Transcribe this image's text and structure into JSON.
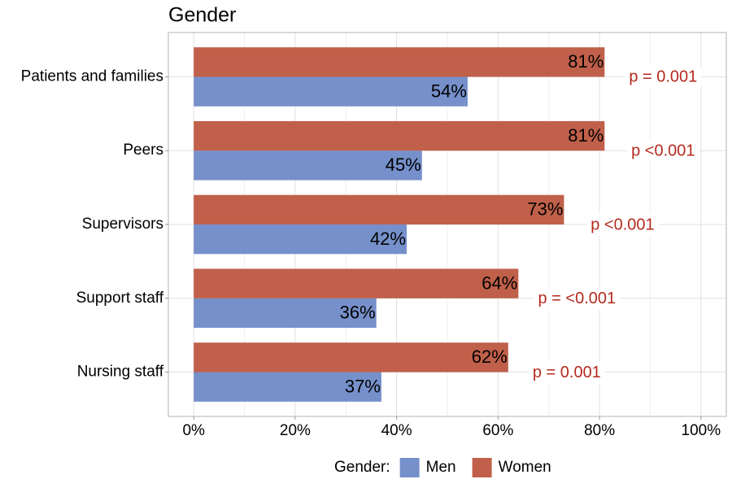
{
  "chart_data": {
    "type": "barh",
    "title": "Gender",
    "categories": [
      "Patients and families",
      "Peers",
      "Supervisors",
      "Support staff",
      "Nursing staff"
    ],
    "series": [
      {
        "name": "Men",
        "color": "#7690cb",
        "values": [
          54,
          45,
          42,
          36,
          37
        ],
        "value_labels": [
          "54%",
          "45%",
          "42%",
          "36%",
          "37%"
        ]
      },
      {
        "name": "Women",
        "color": "#c0604a",
        "values": [
          81,
          81,
          73,
          64,
          62
        ],
        "value_labels": [
          "81%",
          "81%",
          "73%",
          "64%",
          "62%"
        ]
      }
    ],
    "annotations": [
      "p = 0.001",
      "p <0.001",
      "p <0.001",
      "p = <0.001",
      "p = 0.001"
    ],
    "legend_title": "Gender:",
    "legend": "bottom",
    "xlim": [
      -5,
      105
    ],
    "xticks": [
      {
        "value": 0,
        "label": "0%"
      },
      {
        "value": 20,
        "label": "20%"
      },
      {
        "value": 40,
        "label": "40%"
      },
      {
        "value": 60,
        "label": "60%"
      },
      {
        "value": 80,
        "label": "80%"
      },
      {
        "value": 100,
        "label": "100%"
      }
    ],
    "grid": true
  }
}
